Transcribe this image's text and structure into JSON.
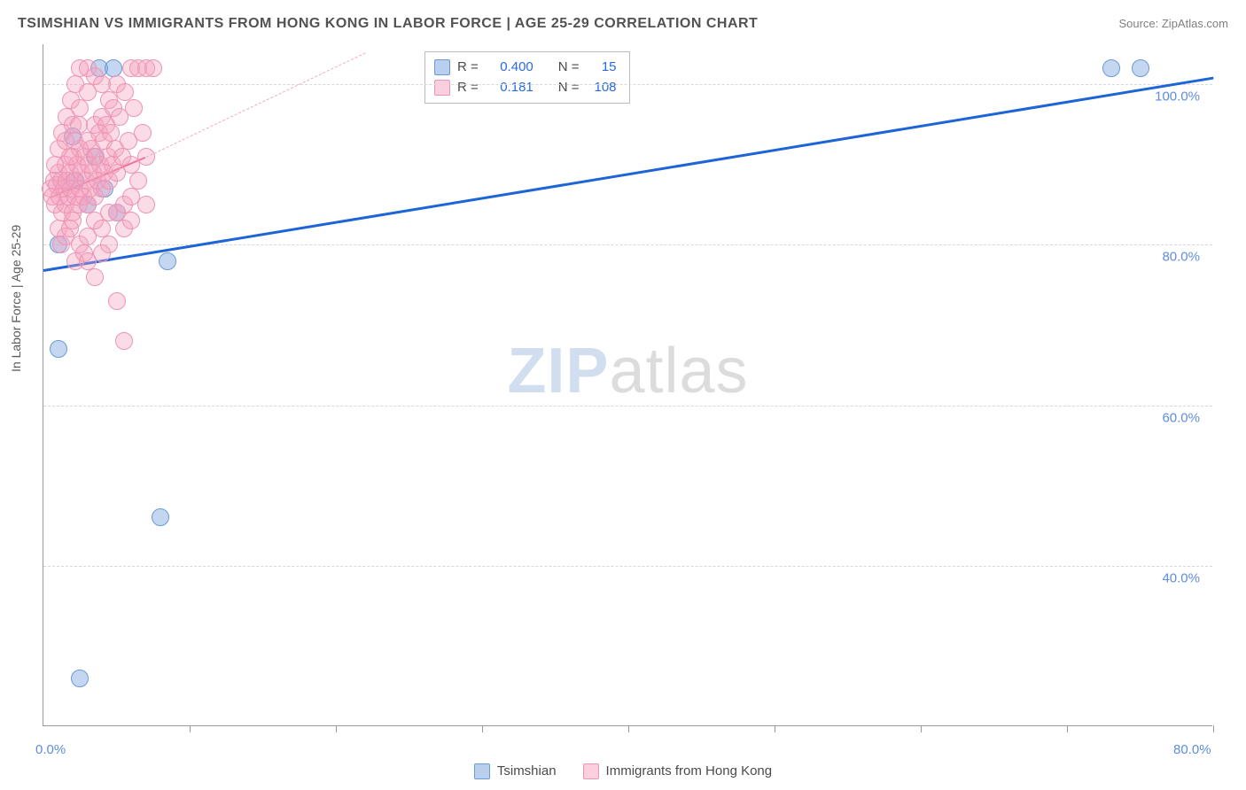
{
  "title": "TSIMSHIAN VS IMMIGRANTS FROM HONG KONG IN LABOR FORCE | AGE 25-29 CORRELATION CHART",
  "source_label": "Source: ",
  "source_name": "ZipAtlas.com",
  "y_axis_label": "In Labor Force | Age 25-29",
  "watermark_a": "ZIP",
  "watermark_b": "atlas",
  "chart": {
    "type": "scatter",
    "background_color": "#ffffff",
    "grid_color": "#d8d8d8",
    "axis_color": "#9a9a9a",
    "point_radius": 10,
    "xlim": [
      0,
      80
    ],
    "ylim": [
      20,
      105
    ],
    "x_ticks": [
      0,
      10,
      20,
      30,
      40,
      50,
      60,
      70,
      80
    ],
    "y_ticks": [
      40,
      60,
      80,
      100
    ],
    "y_tick_labels": [
      "40.0%",
      "60.0%",
      "80.0%",
      "100.0%"
    ],
    "x_origin_label": "0.0%",
    "x_end_label": "80.0%",
    "series": [
      {
        "name": "Tsimshian",
        "color_fill": "rgba(126,167,222,0.45)",
        "color_stroke": "#6b9ad6",
        "css_class": "pt-blue",
        "R": "0.400",
        "N": "15",
        "trend": {
          "x1": 0,
          "y1": 77,
          "x2": 80,
          "y2": 101,
          "color": "#1d64d8",
          "width": 3,
          "dash": false
        },
        "points": [
          {
            "x": 2.0,
            "y": 93.5
          },
          {
            "x": 1.0,
            "y": 80.0
          },
          {
            "x": 3.8,
            "y": 102.0
          },
          {
            "x": 4.8,
            "y": 102.0
          },
          {
            "x": 5.0,
            "y": 84.0
          },
          {
            "x": 8.5,
            "y": 78.0
          },
          {
            "x": 8.0,
            "y": 46.0
          },
          {
            "x": 2.5,
            "y": 26.0
          },
          {
            "x": 1.0,
            "y": 67.0
          },
          {
            "x": 73.0,
            "y": 102.0
          },
          {
            "x": 75.0,
            "y": 102.0
          },
          {
            "x": 2.2,
            "y": 88.0
          },
          {
            "x": 3.5,
            "y": 91.0
          },
          {
            "x": 4.2,
            "y": 87.0
          },
          {
            "x": 3.0,
            "y": 85.0
          }
        ]
      },
      {
        "name": "Immigrants from Hong Kong",
        "color_fill": "rgba(245,160,190,0.38)",
        "color_stroke": "#ec95b6",
        "css_class": "pt-pink",
        "R": "0.181",
        "N": "108",
        "trend_solid": {
          "x1": 0.5,
          "y1": 86,
          "x2": 7,
          "y2": 91,
          "color": "#e9547e",
          "width": 2.5
        },
        "trend_dash": {
          "x1": 7,
          "y1": 91,
          "x2": 22,
          "y2": 104,
          "color": "#f4a9c0",
          "width": 1.5
        },
        "points": [
          {
            "x": 0.5,
            "y": 87
          },
          {
            "x": 0.6,
            "y": 86
          },
          {
            "x": 0.7,
            "y": 88
          },
          {
            "x": 0.8,
            "y": 85
          },
          {
            "x": 0.9,
            "y": 87.5
          },
          {
            "x": 1.0,
            "y": 89
          },
          {
            "x": 1.1,
            "y": 86
          },
          {
            "x": 1.2,
            "y": 88
          },
          {
            "x": 1.3,
            "y": 84
          },
          {
            "x": 1.4,
            "y": 87
          },
          {
            "x": 1.5,
            "y": 90
          },
          {
            "x": 1.5,
            "y": 85
          },
          {
            "x": 1.6,
            "y": 88
          },
          {
            "x": 1.7,
            "y": 86
          },
          {
            "x": 1.8,
            "y": 89
          },
          {
            "x": 1.9,
            "y": 87
          },
          {
            "x": 2.0,
            "y": 91
          },
          {
            "x": 2.0,
            "y": 84
          },
          {
            "x": 2.1,
            "y": 88
          },
          {
            "x": 2.2,
            "y": 86
          },
          {
            "x": 2.3,
            "y": 90
          },
          {
            "x": 2.4,
            "y": 85
          },
          {
            "x": 2.5,
            "y": 92
          },
          {
            "x": 2.5,
            "y": 87
          },
          {
            "x": 2.6,
            "y": 89
          },
          {
            "x": 2.7,
            "y": 86
          },
          {
            "x": 2.8,
            "y": 91
          },
          {
            "x": 2.9,
            "y": 88
          },
          {
            "x": 3.0,
            "y": 93
          },
          {
            "x": 3.0,
            "y": 85
          },
          {
            "x": 3.1,
            "y": 90
          },
          {
            "x": 3.2,
            "y": 87
          },
          {
            "x": 3.3,
            "y": 92
          },
          {
            "x": 3.4,
            "y": 89
          },
          {
            "x": 3.5,
            "y": 95
          },
          {
            "x": 3.5,
            "y": 86
          },
          {
            "x": 3.6,
            "y": 91
          },
          {
            "x": 3.7,
            "y": 88
          },
          {
            "x": 3.8,
            "y": 94
          },
          {
            "x": 3.9,
            "y": 90
          },
          {
            "x": 4.0,
            "y": 96
          },
          {
            "x": 4.0,
            "y": 87
          },
          {
            "x": 4.1,
            "y": 93
          },
          {
            "x": 4.2,
            "y": 89
          },
          {
            "x": 4.3,
            "y": 95
          },
          {
            "x": 4.4,
            "y": 91
          },
          {
            "x": 4.5,
            "y": 98
          },
          {
            "x": 4.5,
            "y": 88
          },
          {
            "x": 4.6,
            "y": 94
          },
          {
            "x": 4.7,
            "y": 90
          },
          {
            "x": 4.8,
            "y": 97
          },
          {
            "x": 4.9,
            "y": 92
          },
          {
            "x": 5.0,
            "y": 100
          },
          {
            "x": 5.0,
            "y": 89
          },
          {
            "x": 5.2,
            "y": 96
          },
          {
            "x": 5.4,
            "y": 91
          },
          {
            "x": 5.6,
            "y": 99
          },
          {
            "x": 5.8,
            "y": 93
          },
          {
            "x": 6.0,
            "y": 102
          },
          {
            "x": 6.0,
            "y": 90
          },
          {
            "x": 6.2,
            "y": 97
          },
          {
            "x": 6.5,
            "y": 102
          },
          {
            "x": 6.8,
            "y": 94
          },
          {
            "x": 7.0,
            "y": 102
          },
          {
            "x": 7.0,
            "y": 91
          },
          {
            "x": 7.5,
            "y": 102
          },
          {
            "x": 1.0,
            "y": 82
          },
          {
            "x": 1.5,
            "y": 81
          },
          {
            "x": 2.0,
            "y": 83
          },
          {
            "x": 2.5,
            "y": 80
          },
          {
            "x": 1.2,
            "y": 80
          },
          {
            "x": 1.8,
            "y": 82
          },
          {
            "x": 3.0,
            "y": 81
          },
          {
            "x": 3.5,
            "y": 83
          },
          {
            "x": 4.0,
            "y": 82
          },
          {
            "x": 2.2,
            "y": 78
          },
          {
            "x": 2.8,
            "y": 79
          },
          {
            "x": 4.5,
            "y": 80
          },
          {
            "x": 5.0,
            "y": 84
          },
          {
            "x": 5.5,
            "y": 85
          },
          {
            "x": 6.0,
            "y": 86
          },
          {
            "x": 6.5,
            "y": 88
          },
          {
            "x": 0.8,
            "y": 90
          },
          {
            "x": 1.0,
            "y": 92
          },
          {
            "x": 1.3,
            "y": 94
          },
          {
            "x": 1.6,
            "y": 96
          },
          {
            "x": 1.9,
            "y": 98
          },
          {
            "x": 2.2,
            "y": 100
          },
          {
            "x": 2.5,
            "y": 102
          },
          {
            "x": 3.0,
            "y": 102
          },
          {
            "x": 3.5,
            "y": 101
          },
          {
            "x": 4.0,
            "y": 100
          },
          {
            "x": 2.0,
            "y": 95
          },
          {
            "x": 2.5,
            "y": 97
          },
          {
            "x": 3.0,
            "y": 99
          },
          {
            "x": 5.0,
            "y": 73
          },
          {
            "x": 5.5,
            "y": 68
          },
          {
            "x": 3.0,
            "y": 78
          },
          {
            "x": 3.5,
            "y": 76
          },
          {
            "x": 4.0,
            "y": 79
          },
          {
            "x": 4.5,
            "y": 84
          },
          {
            "x": 5.5,
            "y": 82
          },
          {
            "x": 6.0,
            "y": 83
          },
          {
            "x": 7.0,
            "y": 85
          },
          {
            "x": 1.5,
            "y": 93
          },
          {
            "x": 1.8,
            "y": 91
          },
          {
            "x": 2.1,
            "y": 93
          },
          {
            "x": 2.4,
            "y": 95
          }
        ]
      }
    ]
  },
  "legend": {
    "r_label": "R =",
    "n_label": "N ="
  },
  "bottom_legend": [
    {
      "label": "Tsimshian",
      "swatch": "sw-blue"
    },
    {
      "label": "Immigrants from Hong Kong",
      "swatch": "sw-pink"
    }
  ]
}
